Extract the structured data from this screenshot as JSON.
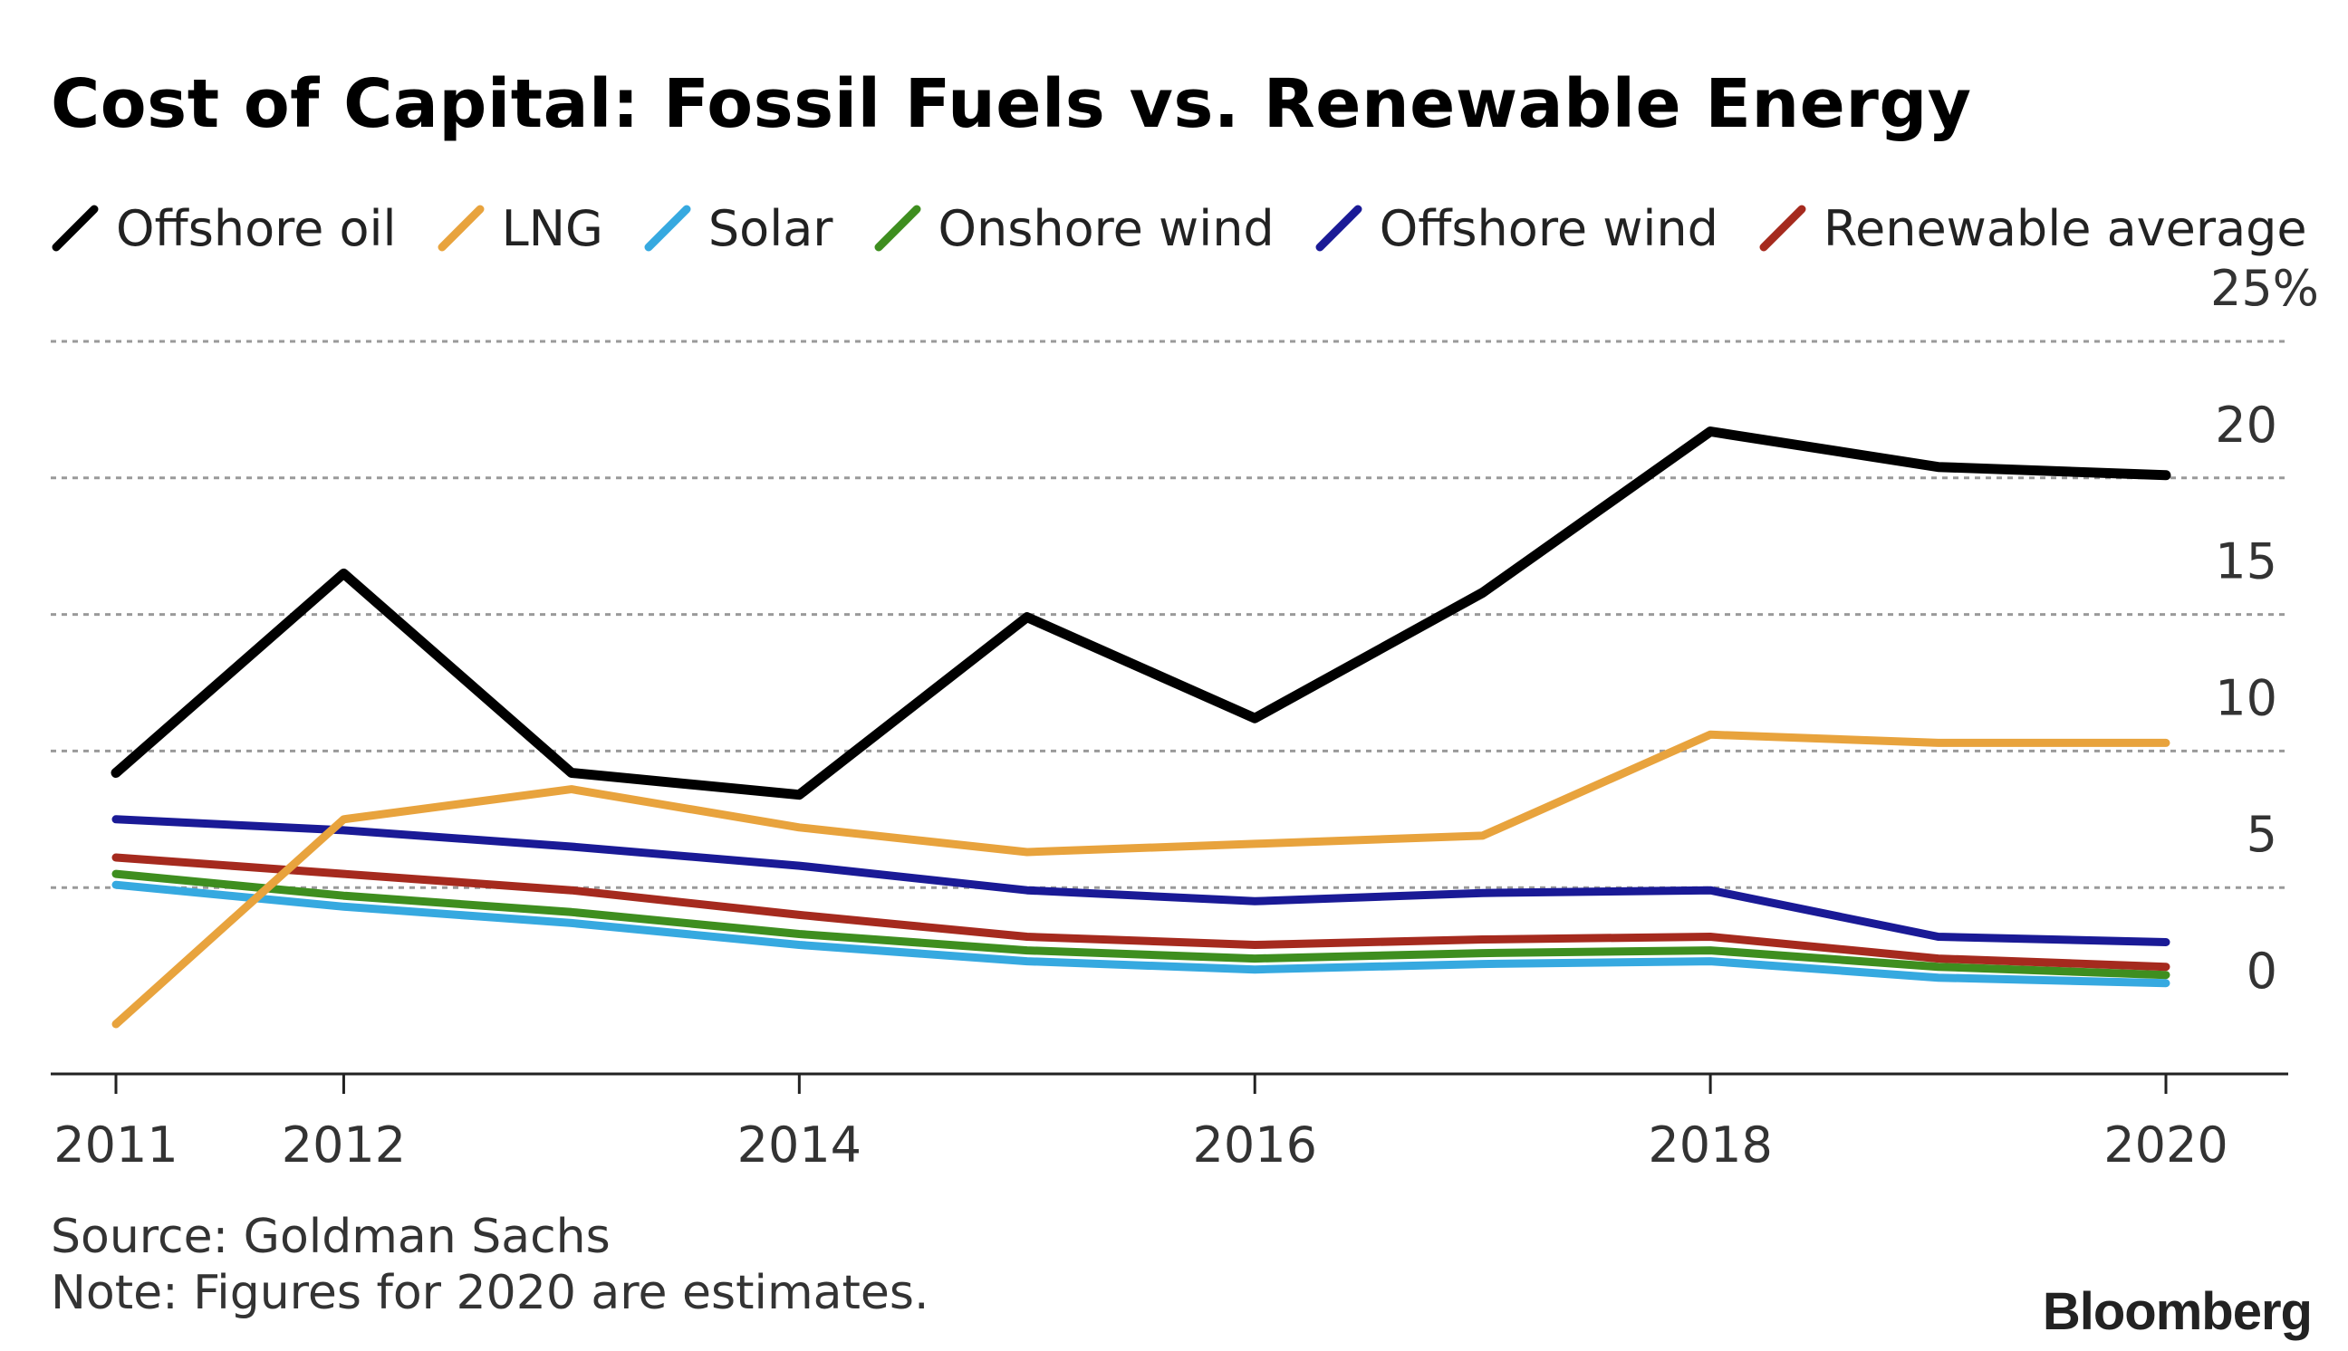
{
  "chart_data": {
    "type": "line",
    "title": "Cost of Capital: Fossil Fuels vs. Renewable Energy",
    "x": [
      2011,
      2012,
      2013,
      2014,
      2015,
      2016,
      2017,
      2018,
      2019,
      2020
    ],
    "x_tick_labels": [
      "2011",
      "2012",
      "2014",
      "2016",
      "2018",
      "2020"
    ],
    "x_tick_values": [
      2011,
      2012,
      2014,
      2016,
      2018,
      2020
    ],
    "y_tick_labels": [
      "0",
      "5",
      "10",
      "15",
      "20",
      "25%"
    ],
    "y_tick_values": [
      0,
      5,
      10,
      15,
      20,
      25
    ],
    "ylim": [
      -1.7,
      25
    ],
    "xlim": [
      2010.75,
      2020.55
    ],
    "grid": true,
    "legend_position": "top",
    "series": [
      {
        "name": "Offshore oil",
        "color": "#000000",
        "values": [
          9.2,
          16.5,
          9.2,
          8.4,
          14.9,
          11.2,
          15.8,
          21.7,
          20.4,
          20.1
        ]
      },
      {
        "name": "LNG",
        "color": "#E8A33D",
        "values": [
          0,
          7.5,
          8.6,
          7.2,
          6.3,
          6.6,
          6.9,
          10.6,
          10.3,
          10.3
        ]
      },
      {
        "name": "Solar",
        "color": "#36A9E0",
        "values": [
          5.1,
          4.3,
          3.7,
          2.9,
          2.3,
          2.0,
          2.2,
          2.3,
          1.7,
          1.5
        ]
      },
      {
        "name": "Onshore wind",
        "color": "#3E8E1F",
        "values": [
          5.5,
          4.7,
          4.1,
          3.3,
          2.7,
          2.4,
          2.6,
          2.7,
          2.1,
          1.8
        ]
      },
      {
        "name": "Offshore wind",
        "color": "#1A1A96",
        "values": [
          7.5,
          7.1,
          6.5,
          5.8,
          4.9,
          4.5,
          4.8,
          4.9,
          3.2,
          3.0
        ]
      },
      {
        "name": "Renewable average",
        "color": "#A52A1E",
        "values": [
          6.1,
          5.5,
          4.9,
          4.0,
          3.2,
          2.9,
          3.1,
          3.2,
          2.4,
          2.1
        ]
      }
    ]
  },
  "footer": {
    "source": "Source: Goldman Sachs",
    "note": "Note: Figures for 2020 are estimates."
  },
  "brand": "Bloomberg"
}
